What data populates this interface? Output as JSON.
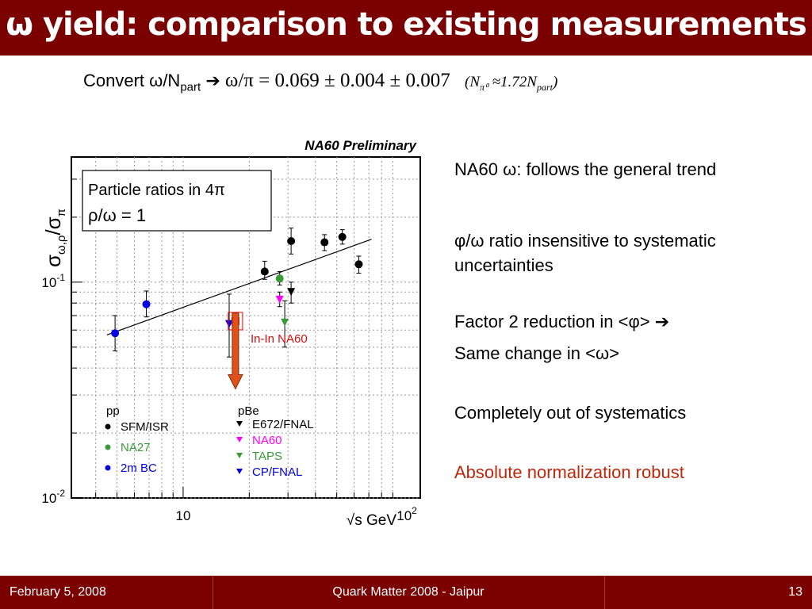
{
  "slide": {
    "title": "ω yield: comparison to existing measurements",
    "convert_text": "Convert ω/N",
    "convert_sub": "part",
    "convert_arrow": "➔",
    "convert_formula": "ω/π = 0.069 ± 0.004 ± 0.007",
    "convert_note": "(N",
    "convert_note_sub": "π⁰",
    "convert_note_rest": "≈1.72N",
    "convert_note_sub2": "part",
    "convert_note_close": ")"
  },
  "right_text": {
    "line1": "NA60 ω: follows the general trend",
    "line2a": "φ/ω ratio insensitive to systematic",
    "line2b": "uncertainties",
    "line3": "Factor 2 reduction in <φ> ➔",
    "line4": "Same change in <ω>",
    "line5": "Completely out of systematics",
    "line6": "Absolute normalization robust"
  },
  "footer": {
    "date": "February 5, 2008",
    "conference": "Quark Matter 2008 - Jaipur",
    "page": "13"
  },
  "chart_data": {
    "type": "scatter",
    "title": "NA60 Preliminary",
    "ylabel_main": "σ",
    "ylabel_sub": "ω,ρ",
    "ylabel_sep": "/σ",
    "ylabel_sub2": "π",
    "xlabel": "√s GeV",
    "x_scale": "log",
    "y_scale": "log",
    "xlim": [
      3.1,
      120
    ],
    "ylim": [
      0.01,
      0.38
    ],
    "x_ticks": [
      {
        "value": 10,
        "label": "10"
      },
      {
        "value": 100,
        "label": "10",
        "exp": "2"
      }
    ],
    "y_ticks": [
      {
        "value": 0.01,
        "label": "10",
        "exp": "-2"
      },
      {
        "value": 0.1,
        "label": "10",
        "exp": "-1"
      }
    ],
    "grid": true,
    "fit_line": {
      "x": [
        4.5,
        72
      ],
      "y": [
        0.057,
        0.158
      ]
    },
    "box_label_line1": "Particle ratios in 4π",
    "box_label_line2": "ρ/ω = 1",
    "na60_label": "In-In NA60",
    "na60_arrow": {
      "x": 17.3,
      "y_from": 0.072,
      "y_to": 0.032
    },
    "series": [
      {
        "name": "SFM/ISR",
        "group": "pp",
        "marker": "circle",
        "color": "#000000",
        "points": [
          {
            "x": 23.5,
            "y": 0.112,
            "ylo": 0.103,
            "yhi": 0.125
          },
          {
            "x": 31,
            "y": 0.155,
            "ylo": 0.135,
            "yhi": 0.178
          },
          {
            "x": 44,
            "y": 0.153,
            "ylo": 0.14,
            "yhi": 0.166
          },
          {
            "x": 53,
            "y": 0.162,
            "ylo": 0.15,
            "yhi": 0.175
          },
          {
            "x": 63,
            "y": 0.121,
            "ylo": 0.11,
            "yhi": 0.132
          }
        ]
      },
      {
        "name": "NA27",
        "group": "pp",
        "marker": "circle",
        "color": "#3a9a3a",
        "points": [
          {
            "x": 27.5,
            "y": 0.104,
            "ylo": 0.097,
            "yhi": 0.112
          }
        ]
      },
      {
        "name": "2m BC",
        "group": "pp",
        "marker": "circle",
        "color": "#0000e0",
        "points": [
          {
            "x": 4.9,
            "y": 0.058,
            "ylo": 0.048,
            "yhi": 0.07
          },
          {
            "x": 6.8,
            "y": 0.079,
            "ylo": 0.069,
            "yhi": 0.091
          }
        ]
      },
      {
        "name": "E672/FNAL",
        "group": "pBe",
        "marker": "tri",
        "color": "#000000",
        "points": [
          {
            "x": 31,
            "y": 0.09,
            "ylo": 0.08,
            "yhi": 0.1
          }
        ]
      },
      {
        "name": "NA60",
        "group": "pBe",
        "marker": "tri",
        "color": "#ff00ff",
        "points": [
          {
            "x": 27.5,
            "y": 0.083,
            "ylo": 0.077,
            "yhi": 0.09
          }
        ]
      },
      {
        "name": "TAPS",
        "group": "pBe",
        "marker": "tri",
        "color": "#3a9a3a",
        "points": [
          {
            "x": 29,
            "y": 0.065,
            "ylo": 0.05,
            "yhi": 0.082
          }
        ]
      },
      {
        "name": "CP/FNAL",
        "group": "pBe",
        "marker": "tri",
        "color": "#0000e0",
        "points": [
          {
            "x": 16.2,
            "y": 0.064,
            "ylo": 0.045,
            "yhi": 0.088
          }
        ]
      },
      {
        "name": "In-In NA60",
        "group": "",
        "marker": "square",
        "color": "#ff0000",
        "points": [
          {
            "x": 17.3,
            "y": 0.066,
            "ylo": 0.062,
            "yhi": 0.07
          }
        ]
      }
    ],
    "legend_groups": [
      {
        "label": "pp",
        "entries": [
          "SFM/ISR",
          "NA27",
          "2m BC"
        ]
      },
      {
        "label": "pBe",
        "entries": [
          "E672/FNAL",
          "NA60",
          "TAPS",
          "CP/FNAL"
        ]
      }
    ]
  }
}
